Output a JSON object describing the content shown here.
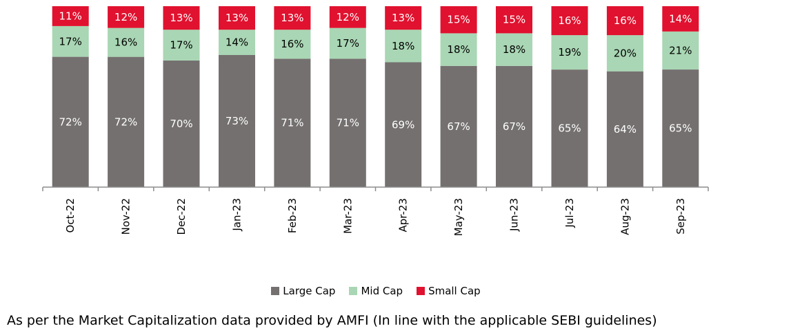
{
  "chart_data": {
    "type": "bar",
    "stacked": true,
    "categories": [
      "Oct-22",
      "Nov-22",
      "Dec-22",
      "Jan-23",
      "Feb-23",
      "Mar-23",
      "Apr-23",
      "May-23",
      "Jun-23",
      "Jul-23",
      "Aug-23",
      "Sep-23"
    ],
    "series": [
      {
        "name": "Large Cap",
        "color": "#757070",
        "label_color": "#ffffff",
        "values": [
          72,
          72,
          70,
          73,
          71,
          71,
          69,
          67,
          67,
          65,
          64,
          65
        ]
      },
      {
        "name": "Mid Cap",
        "color": "#a9d6b4",
        "label_color": "#000000",
        "values": [
          17,
          16,
          17,
          14,
          16,
          17,
          18,
          18,
          18,
          19,
          20,
          21
        ]
      },
      {
        "name": "Small Cap",
        "color": "#e0122f",
        "label_color": "#ffffff",
        "values": [
          11,
          12,
          13,
          13,
          13,
          12,
          13,
          15,
          15,
          16,
          16,
          14
        ]
      }
    ],
    "value_suffix": "%",
    "ylim": [
      0,
      100
    ],
    "grid": false,
    "legend_position": "bottom-center",
    "title": "",
    "xlabel": "",
    "ylabel": ""
  },
  "footnote": "As per the Market Capitalization data provided by AMFI (In line with the applicable SEBI guidelines)"
}
